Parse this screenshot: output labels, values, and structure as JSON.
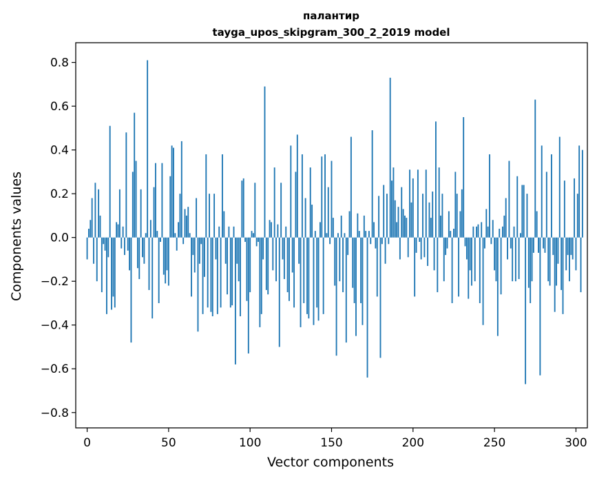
{
  "chart_data": {
    "type": "bar",
    "title": "палантир",
    "subtitle": "tayga_upos_skipgram_300_2_2019 model",
    "xlabel": "Vector components",
    "ylabel": "Components values",
    "xlim": [
      -7,
      307
    ],
    "ylim": [
      -0.87,
      0.89
    ],
    "xticks": [
      0,
      50,
      100,
      150,
      200,
      250,
      300
    ],
    "xtick_labels": [
      "0",
      "50",
      "100",
      "150",
      "200",
      "250",
      "300"
    ],
    "yticks": [
      -0.8,
      -0.6,
      -0.4,
      -0.2,
      0.0,
      0.2,
      0.4,
      0.6,
      0.8
    ],
    "ytick_labels": [
      "−0.8",
      "−0.6",
      "−0.4",
      "−0.2",
      "0.0",
      "0.2",
      "0.4",
      "0.6",
      "0.8"
    ],
    "grid": false,
    "bar_color": "#1f77b4",
    "values": [
      -0.1,
      0.04,
      0.08,
      0.18,
      -0.12,
      0.25,
      -0.2,
      0.22,
      0.1,
      -0.25,
      -0.03,
      -0.06,
      -0.35,
      -0.09,
      0.51,
      -0.33,
      -0.27,
      -0.32,
      0.07,
      0.06,
      0.22,
      -0.05,
      0.05,
      -0.08,
      0.48,
      -0.06,
      -0.15,
      -0.48,
      0.3,
      0.57,
      0.35,
      -0.14,
      -0.19,
      0.22,
      -0.09,
      -0.12,
      0.02,
      0.81,
      -0.24,
      0.08,
      -0.37,
      0.23,
      0.34,
      0.03,
      -0.3,
      -0.02,
      0.34,
      -0.17,
      -0.21,
      -0.15,
      -0.22,
      0.28,
      0.42,
      0.41,
      0.02,
      -0.06,
      0.07,
      0.2,
      0.44,
      -0.03,
      0.13,
      0.1,
      0.14,
      0.02,
      -0.27,
      -0.08,
      -0.16,
      0.18,
      -0.43,
      -0.12,
      -0.03,
      -0.35,
      -0.18,
      0.38,
      -0.32,
      0.2,
      -0.34,
      -0.36,
      0.2,
      -0.1,
      -0.35,
      0.05,
      -0.32,
      0.38,
      0.12,
      -0.12,
      -0.26,
      0.05,
      -0.32,
      -0.31,
      0.05,
      -0.58,
      -0.12,
      -0.2,
      -0.36,
      0.26,
      0.27,
      -0.02,
      -0.29,
      -0.53,
      -0.25,
      0.03,
      0.02,
      0.25,
      -0.04,
      -0.02,
      -0.41,
      -0.35,
      -0.1,
      0.69,
      -0.24,
      -0.26,
      0.08,
      0.07,
      -0.15,
      0.32,
      -0.2,
      0.06,
      -0.5,
      0.25,
      -0.1,
      -0.19,
      0.05,
      -0.25,
      -0.29,
      0.42,
      -0.16,
      -0.32,
      0.3,
      0.47,
      -0.12,
      -0.41,
      0.38,
      -0.3,
      0.18,
      -0.35,
      -0.37,
      0.32,
      0.15,
      -0.4,
      0.03,
      -0.32,
      -0.38,
      0.07,
      0.37,
      -0.35,
      0.38,
      0.02,
      0.23,
      -0.03,
      0.35,
      0.09,
      -0.22,
      -0.54,
      0.02,
      -0.2,
      0.1,
      -0.25,
      0.02,
      -0.48,
      -0.08,
      0.12,
      0.46,
      -0.23,
      -0.3,
      -0.45,
      0.11,
      0.03,
      -0.3,
      -0.4,
      0.1,
      0.03,
      -0.64,
      0.03,
      -0.03,
      0.49,
      0.07,
      -0.05,
      -0.27,
      0.19,
      -0.55,
      -0.03,
      0.24,
      -0.12,
      0.2,
      -0.03,
      0.73,
      0.26,
      0.32,
      0.17,
      0.07,
      0.14,
      -0.1,
      0.23,
      0.13,
      0.1,
      0.09,
      -0.09,
      0.31,
      0.16,
      0.27,
      -0.27,
      -0.07,
      0.31,
      -0.02,
      -0.1,
      0.2,
      -0.09,
      0.31,
      -0.13,
      0.16,
      0.09,
      0.21,
      -0.15,
      0.53,
      -0.25,
      0.32,
      0.1,
      0.2,
      -0.2,
      -0.08,
      -0.05,
      0.12,
      0.03,
      -0.3,
      0.04,
      0.3,
      0.2,
      -0.27,
      0.12,
      0.22,
      0.55,
      -0.04,
      -0.1,
      -0.28,
      -0.15,
      -0.22,
      0.05,
      -0.2,
      0.05,
      0.06,
      -0.3,
      0.07,
      -0.4,
      -0.05,
      0.13,
      0.05,
      0.38,
      -0.03,
      0.08,
      -0.15,
      -0.2,
      -0.45,
      0.04,
      -0.26,
      0.05,
      0.1,
      0.18,
      -0.1,
      0.35,
      -0.05,
      -0.2,
      0.05,
      -0.2,
      0.28,
      -0.19,
      0.02,
      0.24,
      0.24,
      -0.67,
      0.2,
      -0.23,
      -0.3,
      -0.2,
      -0.07,
      0.63,
      0.12,
      -0.07,
      -0.63,
      0.42,
      -0.05,
      -0.07,
      0.3,
      -0.2,
      -0.22,
      0.38,
      -0.08,
      -0.34,
      -0.22,
      -0.12,
      0.46,
      -0.24,
      -0.35,
      0.26,
      -0.15,
      -0.08,
      -0.2,
      -0.08,
      -0.1,
      0.27,
      -0.15,
      0.2,
      0.42,
      -0.25,
      0.4
    ]
  }
}
